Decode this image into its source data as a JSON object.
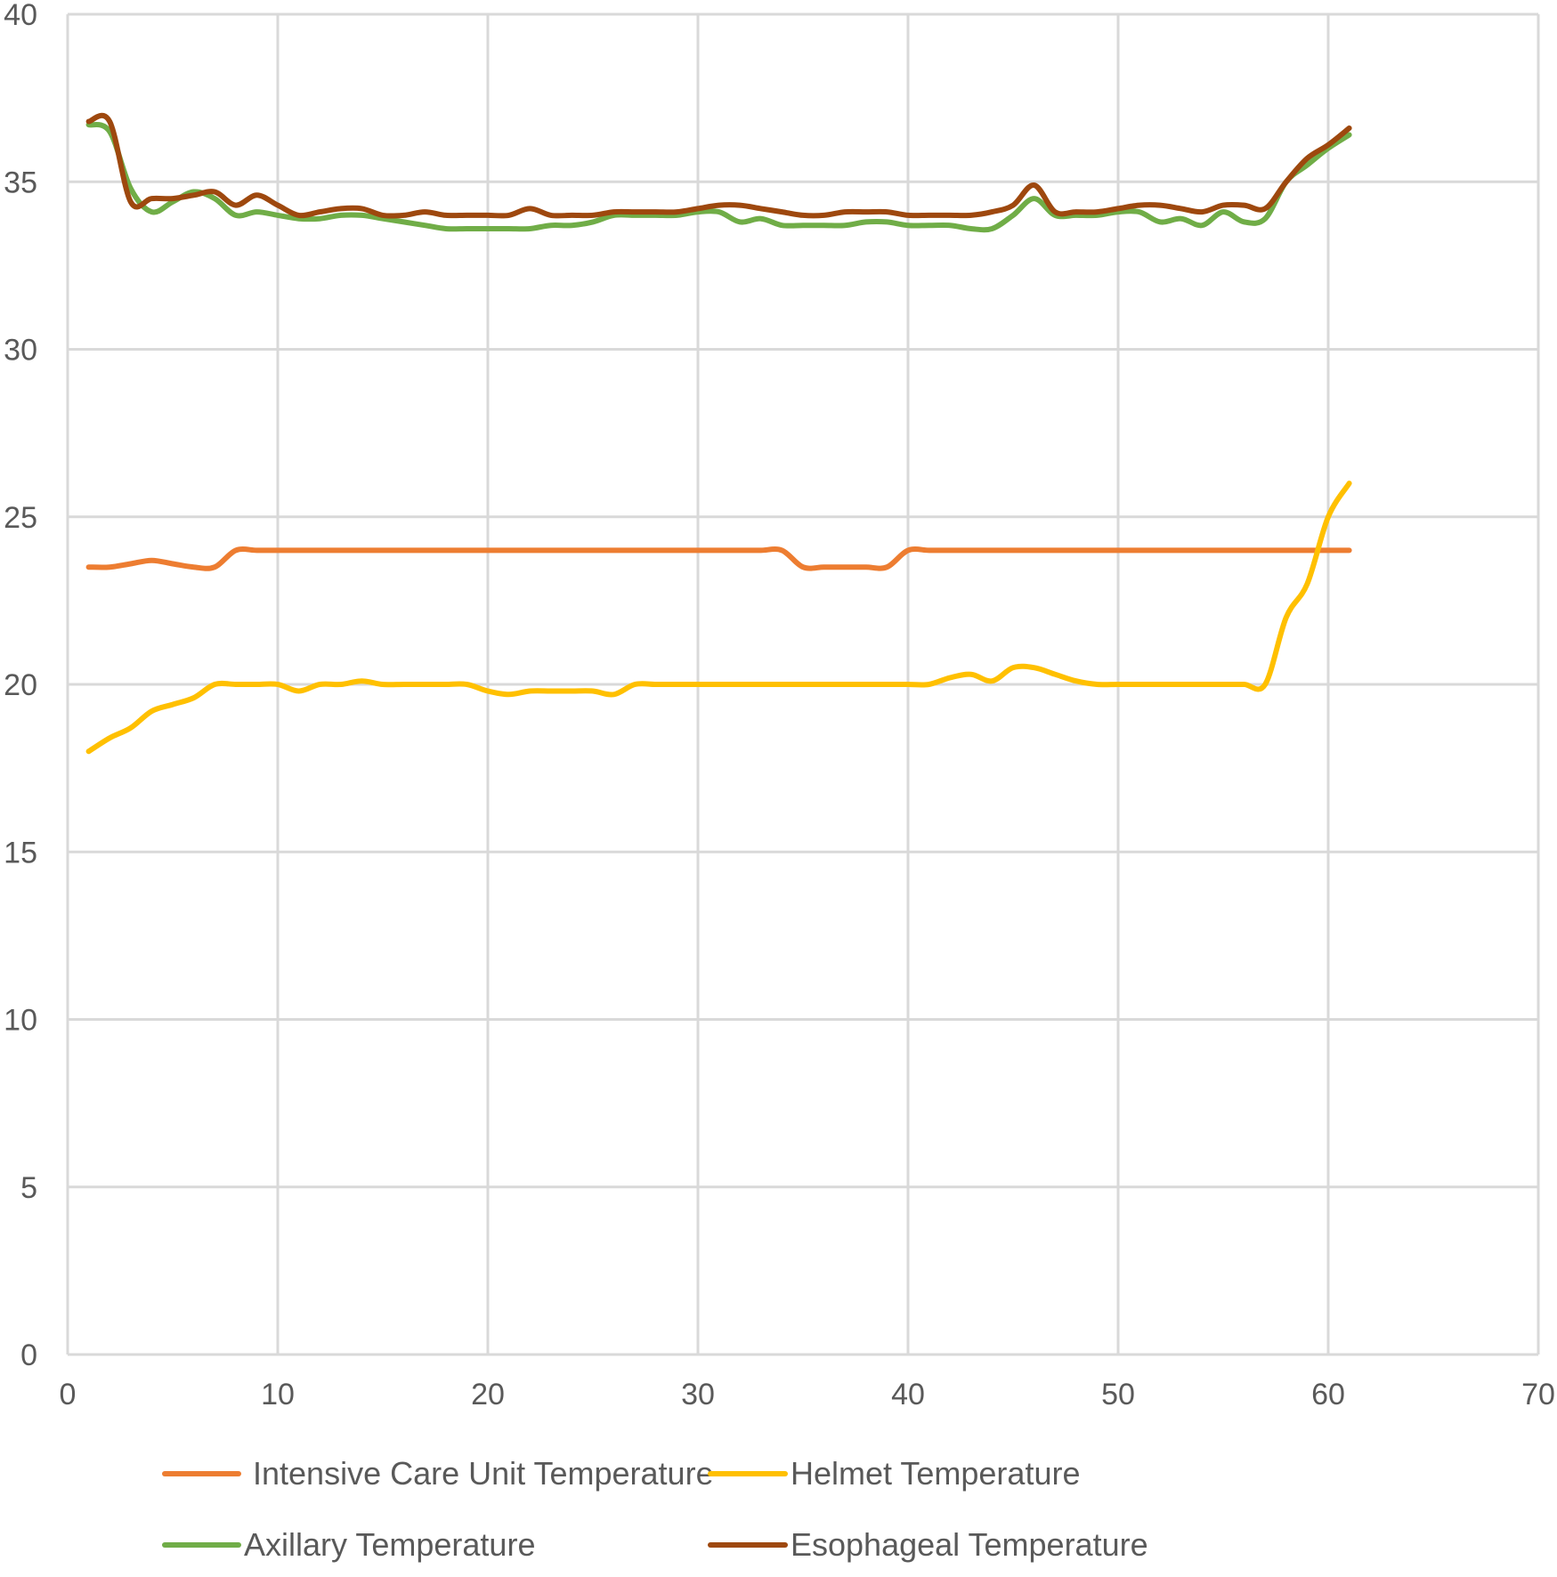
{
  "chart_data": {
    "type": "line",
    "title": "",
    "xlabel": "",
    "ylabel": "",
    "xlim": [
      0,
      70
    ],
    "ylim": [
      0,
      40
    ],
    "xticks": [
      0,
      10,
      20,
      30,
      40,
      50,
      60,
      70
    ],
    "yticks": [
      0,
      5,
      10,
      15,
      20,
      25,
      30,
      35,
      40
    ],
    "grid": true,
    "legend_position": "bottom",
    "x": [
      1,
      2,
      3,
      4,
      5,
      6,
      7,
      8,
      9,
      10,
      11,
      12,
      13,
      14,
      15,
      16,
      17,
      18,
      19,
      20,
      21,
      22,
      23,
      24,
      25,
      26,
      27,
      28,
      29,
      30,
      31,
      32,
      33,
      34,
      35,
      36,
      37,
      38,
      39,
      40,
      41,
      42,
      43,
      44,
      45,
      46,
      47,
      48,
      49,
      50,
      51,
      52,
      53,
      54,
      55,
      56,
      57,
      58,
      59,
      60,
      61
    ],
    "series": [
      {
        "name": "Intensive Care Unit Temperature",
        "color": "#ED7D31",
        "values": [
          23.5,
          23.5,
          23.6,
          23.7,
          23.6,
          23.5,
          23.5,
          24,
          24,
          24,
          24,
          24,
          24,
          24,
          24,
          24,
          24,
          24,
          24,
          24,
          24,
          24,
          24,
          24,
          24,
          24,
          24,
          24,
          24,
          24,
          24,
          24,
          24,
          24,
          23.5,
          23.5,
          23.5,
          23.5,
          23.5,
          24,
          24,
          24,
          24,
          24,
          24,
          24,
          24,
          24,
          24,
          24,
          24,
          24,
          24,
          24,
          24,
          24,
          24,
          24,
          24,
          24,
          24
        ]
      },
      {
        "name": "Helmet Temperature",
        "color": "#FFC000",
        "values": [
          18,
          18.4,
          18.7,
          19.2,
          19.4,
          19.6,
          20,
          20,
          20,
          20,
          19.8,
          20,
          20,
          20.1,
          20,
          20,
          20,
          20,
          20,
          19.8,
          19.7,
          19.8,
          19.8,
          19.8,
          19.8,
          19.7,
          20,
          20,
          20,
          20,
          20,
          20,
          20,
          20,
          20,
          20,
          20,
          20,
          20,
          20,
          20,
          20.2,
          20.3,
          20.1,
          20.5,
          20.5,
          20.3,
          20.1,
          20,
          20,
          20,
          20,
          20,
          20,
          20,
          20,
          20,
          22,
          23,
          25,
          26
        ]
      },
      {
        "name": "Axillary Temperature",
        "color": "#70AD47",
        "values": [
          36.7,
          36.5,
          34.8,
          34.1,
          34.4,
          34.7,
          34.5,
          34,
          34.1,
          34,
          33.9,
          33.9,
          34,
          34,
          33.9,
          33.8,
          33.7,
          33.6,
          33.6,
          33.6,
          33.6,
          33.6,
          33.7,
          33.7,
          33.8,
          34,
          34,
          34,
          34,
          34.1,
          34.1,
          33.8,
          33.9,
          33.7,
          33.7,
          33.7,
          33.7,
          33.8,
          33.8,
          33.7,
          33.7,
          33.7,
          33.6,
          33.6,
          34,
          34.5,
          34,
          34,
          34,
          34.1,
          34.1,
          33.8,
          33.9,
          33.7,
          34.1,
          33.8,
          33.9,
          35,
          35.5,
          36,
          36.4
        ]
      },
      {
        "name": "Esophageal Temperature",
        "color": "#9E480E",
        "values": [
          36.8,
          36.8,
          34.4,
          34.5,
          34.5,
          34.6,
          34.7,
          34.3,
          34.6,
          34.3,
          34,
          34.1,
          34.2,
          34.2,
          34,
          34,
          34.1,
          34,
          34,
          34,
          34,
          34.2,
          34,
          34,
          34,
          34.1,
          34.1,
          34.1,
          34.1,
          34.2,
          34.3,
          34.3,
          34.2,
          34.1,
          34,
          34,
          34.1,
          34.1,
          34.1,
          34,
          34,
          34,
          34,
          34.1,
          34.3,
          34.9,
          34.1,
          34.1,
          34.1,
          34.2,
          34.3,
          34.3,
          34.2,
          34.1,
          34.3,
          34.3,
          34.2,
          35,
          35.7,
          36.1,
          36.6
        ]
      }
    ]
  }
}
